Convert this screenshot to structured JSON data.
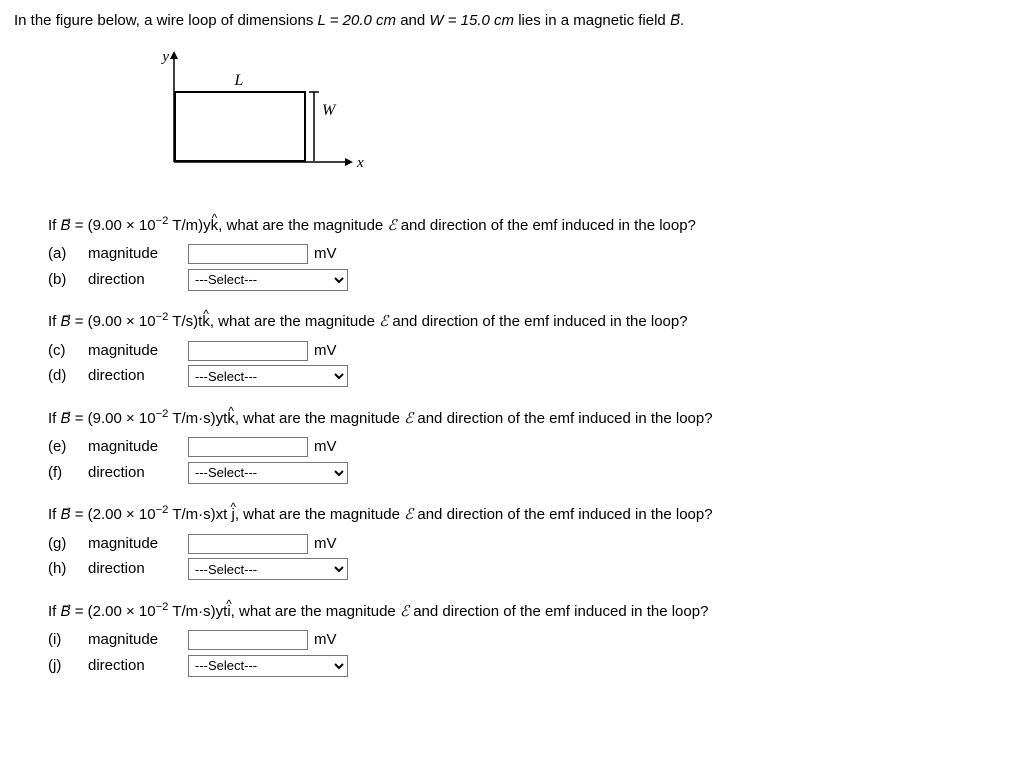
{
  "intro": {
    "prefix": "In the figure below, a wire loop of dimensions ",
    "L_eq": "L = 20.0 cm",
    "middle": " and ",
    "W_eq": "W = 15.0 cm",
    "suffix": " lies in a magnetic field ",
    "B": "B",
    "period": "."
  },
  "figure": {
    "y": "y",
    "x": "x",
    "L": "L",
    "W": "W"
  },
  "select_placeholder": "---Select---",
  "unit_mV": "mV",
  "question_tail": ", what are the magnitude ",
  "question_tail2": " and direction of the emf induced in the loop?",
  "emf_symbol": "ℰ",
  "blocks": [
    {
      "coeff": "(9.00 × 10",
      "exp": "−2",
      "units_vars": " T/m)y",
      "hat": "k",
      "parts": [
        {
          "label": "(a)",
          "text": "magnitude",
          "type": "input"
        },
        {
          "label": "(b)",
          "text": "direction",
          "type": "select"
        }
      ]
    },
    {
      "coeff": "(9.00 × 10",
      "exp": "−2",
      "units_vars": " T/s)t",
      "hat": "k",
      "parts": [
        {
          "label": "(c)",
          "text": "magnitude",
          "type": "input"
        },
        {
          "label": "(d)",
          "text": "direction",
          "type": "select"
        }
      ]
    },
    {
      "coeff": "(9.00 × 10",
      "exp": "−2",
      "units_vars": " T/m·s)yt",
      "hat": "k",
      "parts": [
        {
          "label": "(e)",
          "text": "magnitude",
          "type": "input"
        },
        {
          "label": "(f)",
          "text": "direction",
          "type": "select"
        }
      ]
    },
    {
      "coeff": "(2.00 × 10",
      "exp": "−2",
      "units_vars": " T/m·s)xt ",
      "hat": "j",
      "parts": [
        {
          "label": "(g)",
          "text": "magnitude",
          "type": "input"
        },
        {
          "label": "(h)",
          "text": "direction",
          "type": "select"
        }
      ]
    },
    {
      "coeff": "(2.00 × 10",
      "exp": "−2",
      "units_vars": " T/m·s)yt",
      "hat": "i",
      "parts": [
        {
          "label": "(i)",
          "text": "magnitude",
          "type": "input"
        },
        {
          "label": "(j)",
          "text": "direction",
          "type": "select"
        }
      ]
    }
  ]
}
